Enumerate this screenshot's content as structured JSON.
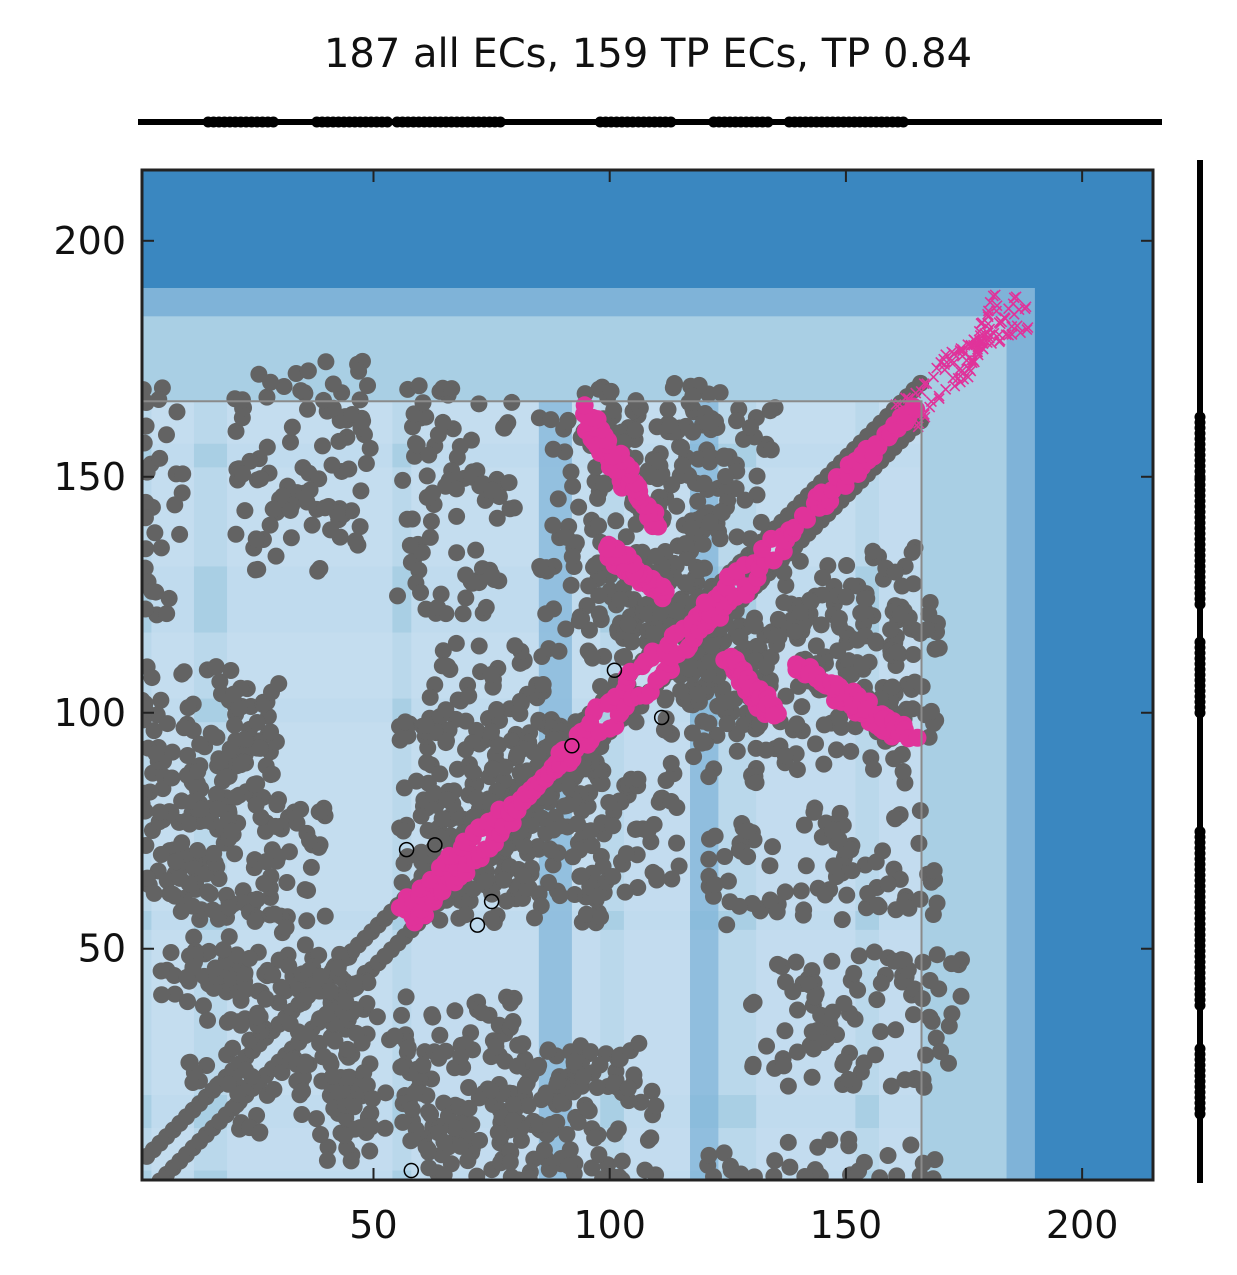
{
  "chart_data": {
    "type": "scatter",
    "title": "187 all ECs, 159 TP ECs, TP 0.84",
    "xlabel": "",
    "ylabel": "",
    "xlim": [
      1,
      215
    ],
    "ylim": [
      1,
      215
    ],
    "xticks": [
      50,
      100,
      150,
      200
    ],
    "yticks": [
      50,
      100,
      150,
      200
    ],
    "xtick_labels": [
      "50",
      "100",
      "150",
      "200"
    ],
    "ytick_labels": [
      "50",
      "100",
      "150",
      "200"
    ],
    "grid": false,
    "legend": "none",
    "colors": {
      "background_far": "#3a87c0",
      "background_mid": "#7fb3d8",
      "background_near": "#a9cfe4",
      "background_light": "#c6ddf0",
      "contact_points": "#636363",
      "true_positive_ecs": "#e0339a",
      "false_positive_ecs": "#e0339a",
      "annotation_lines": "#000000"
    },
    "marker_types": {
      "contact_points": "filled-circle",
      "true_positive_ecs": "filled-circle",
      "false_positive_ecs": "x-cross",
      "outlier_ecs": "open-circle"
    },
    "structure_region": [
      1,
      166
    ],
    "secondary_structure_top": [
      [
        15,
        29
      ],
      [
        38,
        53
      ],
      [
        55,
        77
      ],
      [
        98,
        114
      ],
      [
        122,
        134
      ],
      [
        138,
        163
      ]
    ],
    "secondary_structure_right": [
      [
        15,
        29
      ],
      [
        38,
        75
      ],
      [
        100,
        116
      ],
      [
        123,
        150
      ],
      [
        150,
        163
      ]
    ],
    "contact_blocks": [
      {
        "x": [
          1,
          30
        ],
        "y": [
          75,
          105
        ]
      },
      {
        "x": [
          5,
          40
        ],
        "y": [
          40,
          80
        ]
      },
      {
        "x": [
          20,
          50
        ],
        "y": [
          10,
          50
        ]
      },
      {
        "x": [
          55,
          110
        ],
        "y": [
          1,
          30
        ]
      },
      {
        "x": [
          60,
          100
        ],
        "y": [
          55,
          100
        ]
      },
      {
        "x": [
          80,
          115
        ],
        "y": [
          60,
          90
        ]
      },
      {
        "x": [
          95,
          135
        ],
        "y": [
          105,
          165
        ]
      },
      {
        "x": [
          115,
          170
        ],
        "y": [
          85,
          125
        ]
      },
      {
        "x": [
          130,
          175
        ],
        "y": [
          20,
          50
        ]
      },
      {
        "x": [
          120,
          170
        ],
        "y": [
          1,
          10
        ]
      },
      {
        "x": [
          120,
          170
        ],
        "y": [
          55,
          80
        ]
      }
    ],
    "ec_segments": [
      {
        "kind": "tp",
        "x": [
          56,
          74
        ],
        "y": [
          58,
          76
        ]
      },
      {
        "kind": "tp",
        "x": [
          74,
          97
        ],
        "y": [
          76,
          95
        ]
      },
      {
        "kind": "tp",
        "x": [
          97,
          126
        ],
        "y": [
          100,
          128
        ]
      },
      {
        "kind": "tp",
        "x": [
          126,
          165
        ],
        "y": [
          128,
          165
        ]
      },
      {
        "kind": "tp",
        "x": [
          95,
          110
        ],
        "y": [
          160,
          140
        ]
      },
      {
        "kind": "tp",
        "x": [
          100,
          112
        ],
        "y": [
          133,
          125
        ]
      },
      {
        "kind": "tp",
        "x": [
          125,
          135
        ],
        "y": [
          112,
          100
        ]
      },
      {
        "kind": "tp",
        "x": [
          140,
          165
        ],
        "y": [
          110,
          95
        ]
      },
      {
        "kind": "fp",
        "x": [
          160,
          188
        ],
        "y": [
          165,
          187
        ]
      },
      {
        "kind": "fp",
        "x": [
          170,
          188
        ],
        "y": [
          175,
          182
        ]
      }
    ]
  }
}
